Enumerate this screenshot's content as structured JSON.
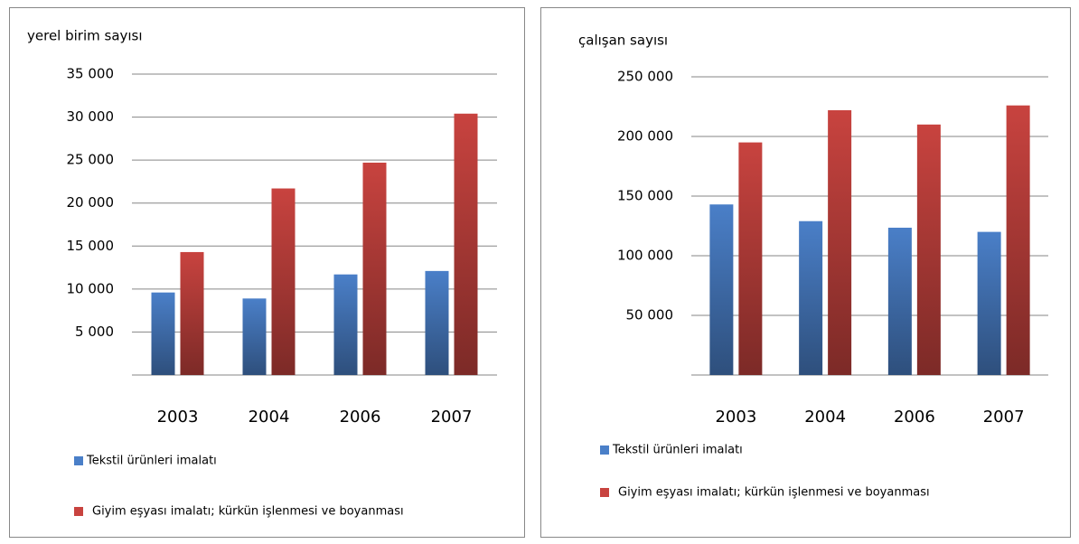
{
  "chart_data": [
    {
      "type": "bar",
      "title": "yerel birim sayısı",
      "categories": [
        "2003",
        "2004",
        "2006",
        "2007"
      ],
      "series": [
        {
          "name": "Tekstil ürünleri imalatı",
          "color": "#4a7fc8",
          "values": [
            9600,
            8900,
            11700,
            12100
          ]
        },
        {
          "name": "Giyim eşyası imalatı; kürkün işlenmesi ve boyanması",
          "color": "#c8433f",
          "values": [
            14300,
            21700,
            24700,
            30400
          ]
        }
      ],
      "ylim": [
        0,
        35000
      ],
      "yticks": [
        {
          "value": 5000,
          "label": "5 000"
        },
        {
          "value": 10000,
          "label": "10 000"
        },
        {
          "value": 15000,
          "label": "15 000"
        },
        {
          "value": 20000,
          "label": "20 000"
        },
        {
          "value": 25000,
          "label": "25 000"
        },
        {
          "value": 30000,
          "label": "30 000"
        },
        {
          "value": 35000,
          "label": "35 000"
        }
      ],
      "grid": true,
      "legend": "bottom"
    },
    {
      "type": "bar",
      "title": "çalışan sayısı",
      "categories": [
        "2003",
        "2004",
        "2006",
        "2007"
      ],
      "series": [
        {
          "name": "Tekstil ürünleri imalatı",
          "color": "#4a7fc8",
          "values": [
            143000,
            129000,
            123500,
            120000
          ]
        },
        {
          "name": "Giyim eşyası imalatı; kürkün işlenmesi ve boyanması",
          "color": "#c8433f",
          "values": [
            195000,
            222000,
            210000,
            226000
          ]
        }
      ],
      "ylim": [
        0,
        250000
      ],
      "yticks": [
        {
          "value": 50000,
          "label": "50 000"
        },
        {
          "value": 100000,
          "label": "100 000"
        },
        {
          "value": 150000,
          "label": "150 000"
        },
        {
          "value": 200000,
          "label": "200 000"
        },
        {
          "value": 250000,
          "label": "250 000"
        }
      ],
      "grid": true,
      "legend": "bottom"
    }
  ]
}
